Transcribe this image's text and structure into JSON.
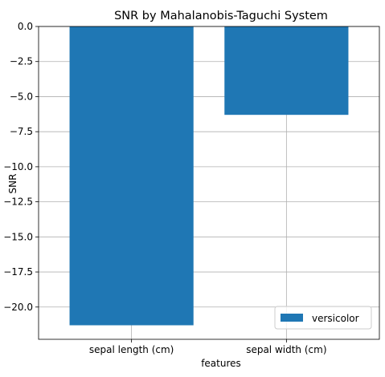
{
  "chart_data": {
    "type": "bar",
    "title": "SNR by Mahalanobis-Taguchi System",
    "xlabel": "features",
    "ylabel": "SNR",
    "categories": [
      "sepal length (cm)",
      "sepal width (cm)"
    ],
    "series": [
      {
        "name": "versicolor",
        "values": [
          -21.3,
          -6.3
        ],
        "color": "#1f77b4"
      }
    ],
    "ylim": [
      -22.3,
      0.0
    ],
    "yticks": [
      0.0,
      -2.5,
      -5.0,
      -7.5,
      -10.0,
      -12.5,
      -15.0,
      -17.5,
      -20.0
    ],
    "ytick_labels": [
      "0.0",
      "−2.5",
      "−5.0",
      "−7.5",
      "−10.0",
      "−12.5",
      "−15.0",
      "−17.5",
      "−20.0"
    ],
    "grid": true,
    "legend_position": "lower-right"
  }
}
